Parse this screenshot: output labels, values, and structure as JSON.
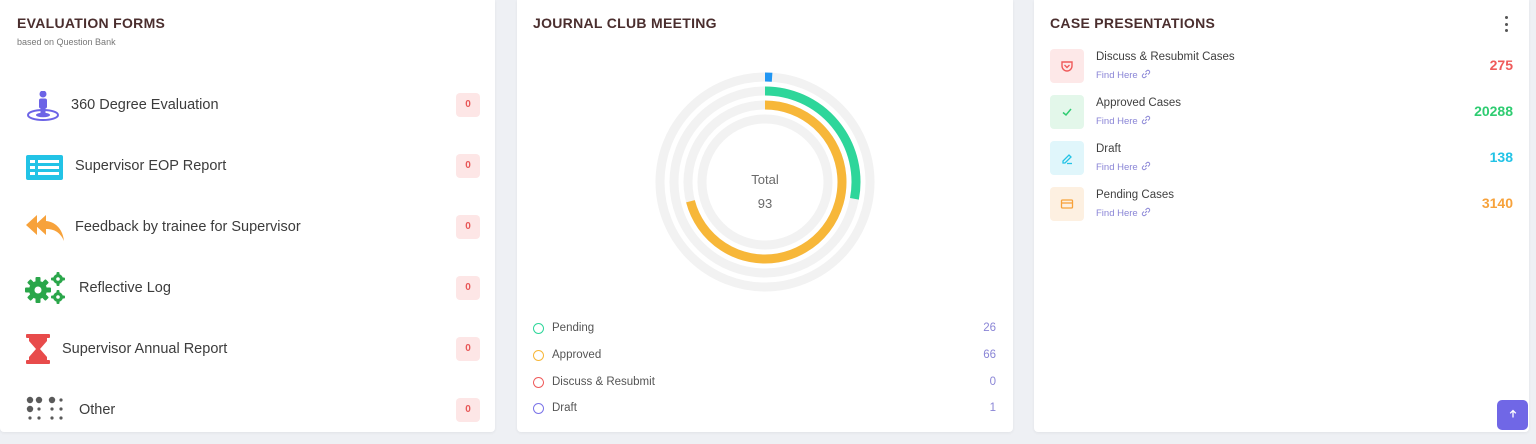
{
  "evaluation": {
    "title": "EVALUATION FORMS",
    "subtitle": "based on Question Bank",
    "items": [
      {
        "label": "360 Degree Evaluation",
        "count": "0",
        "icon": "person-target-icon",
        "color": "#6c63e6"
      },
      {
        "label": "Supervisor EOP Report",
        "count": "0",
        "icon": "newspaper-icon",
        "color": "#22c3e6"
      },
      {
        "label": "Feedback by trainee for Supervisor",
        "count": "0",
        "icon": "reply-all-icon",
        "color": "#f7a23b"
      },
      {
        "label": "Reflective Log",
        "count": "0",
        "icon": "gears-icon",
        "color": "#2aa64a"
      },
      {
        "label": "Supervisor Annual Report",
        "count": "0",
        "icon": "hourglass-icon",
        "color": "#e84b4b"
      },
      {
        "label": "Other",
        "count": "0",
        "icon": "braille-icon",
        "color": "#555555"
      }
    ]
  },
  "journal": {
    "title": "JOURNAL CLUB MEETING",
    "total_label": "Total",
    "total_value": "93",
    "legend": [
      {
        "label": "Pending",
        "value": "26",
        "color": "#2ed69a"
      },
      {
        "label": "Approved",
        "value": "66",
        "color": "#f7b739"
      },
      {
        "label": "Discuss & Resubmit",
        "value": "0",
        "color": "#ef5b5b"
      },
      {
        "label": "Draft",
        "value": "1",
        "color": "#7b74e8"
      }
    ],
    "chart_data": {
      "type": "radial-bar",
      "total": 93,
      "series": [
        {
          "name": "Pending",
          "value": 26,
          "color": "#2ed69a"
        },
        {
          "name": "Approved",
          "value": 66,
          "color": "#f7b739"
        },
        {
          "name": "Discuss & Resubmit",
          "value": 0,
          "color": "#ef5b5b"
        },
        {
          "name": "Draft",
          "value": 1,
          "color": "#2196f3"
        }
      ]
    }
  },
  "cases": {
    "title": "CASE PRESENTATIONS",
    "link_text": "Find Here",
    "items": [
      {
        "label": "Discuss & Resubmit Cases",
        "value": "275",
        "color": "#ef5b5b",
        "bg": "#fde8e8",
        "icon": "pocket-icon"
      },
      {
        "label": "Approved Cases",
        "value": "20288",
        "color": "#2ecc71",
        "bg": "#e3f7ea",
        "icon": "check-icon"
      },
      {
        "label": "Draft",
        "value": "138",
        "color": "#22c3e6",
        "bg": "#e0f6fb",
        "icon": "pencil-icon"
      },
      {
        "label": "Pending Cases",
        "value": "3140",
        "color": "#f7a23b",
        "bg": "#fdf0e1",
        "icon": "credit-card-icon"
      }
    ]
  }
}
